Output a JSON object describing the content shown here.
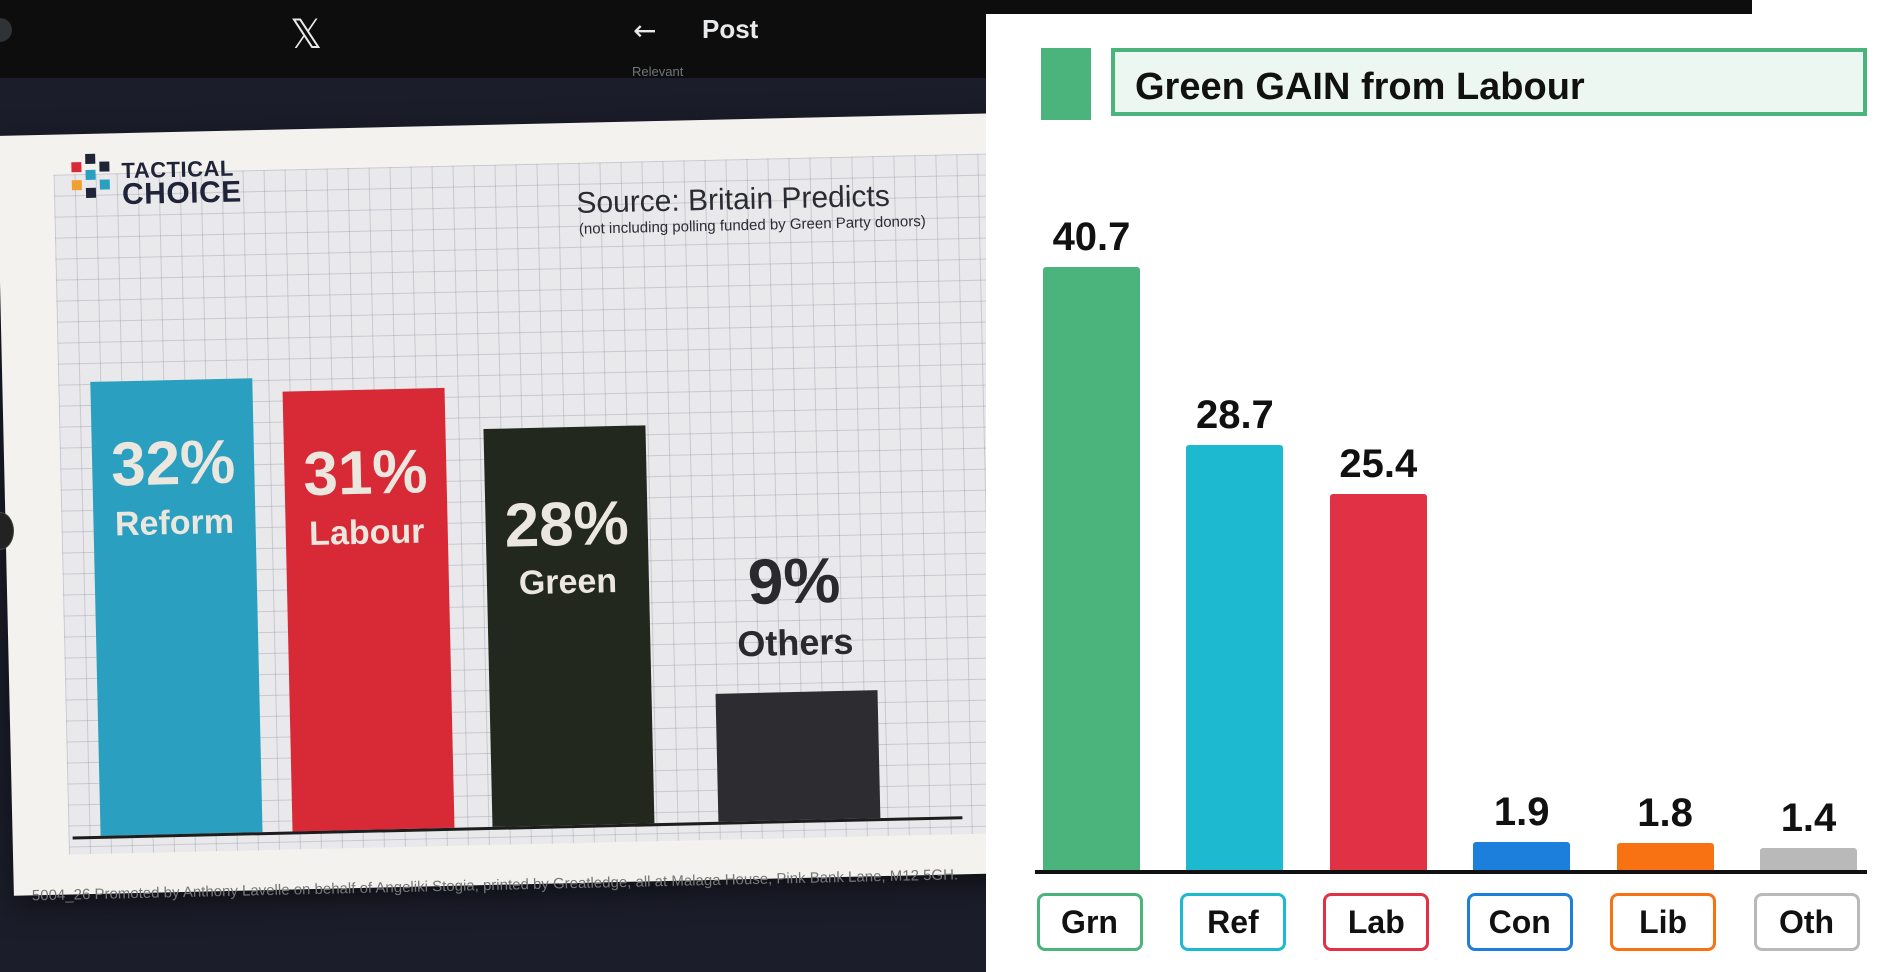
{
  "header": {
    "logo_glyph": "𝕏",
    "back_glyph": "←",
    "title": "Post",
    "subtitle": "Relevant"
  },
  "left_card": {
    "brand_line1": "TACTICAL",
    "brand_line2": "CHOICE",
    "source": "Source: Britain Predicts",
    "source_note": "(not including polling funded by Green Party donors)",
    "footnote": "5004_26 Promoted by Anthony Lavelle on behalf of Angeliki Stogia, printed by Greatledge, all at Malaga House, Pink Bank Lane, M12 5GH.",
    "bars": [
      {
        "pct_label": "32%",
        "name": "Reform",
        "value": 32,
        "color": "#2a9fbf"
      },
      {
        "pct_label": "31%",
        "name": "Labour",
        "value": 31,
        "color": "#d72a36"
      },
      {
        "pct_label": "28%",
        "name": "Green",
        "value": 28,
        "color": "#23281f"
      },
      {
        "pct_label": "9%",
        "name": "Others",
        "value": 9,
        "color": "#2d2d31"
      }
    ]
  },
  "right_chart": {
    "title": "Green GAIN from Labour",
    "accent_color": "#4bb37c"
  },
  "chart_data": [
    {
      "type": "bar",
      "title": "",
      "source": "Source: Britain Predicts",
      "categories": [
        "Reform",
        "Labour",
        "Green",
        "Others"
      ],
      "values": [
        32,
        31,
        28,
        9
      ],
      "colors": [
        "#2a9fbf",
        "#d72a36",
        "#23281f",
        "#2d2d31"
      ]
    },
    {
      "type": "bar",
      "title": "Green GAIN from Labour",
      "categories": [
        "Grn",
        "Ref",
        "Lab",
        "Con",
        "Lib",
        "Oth"
      ],
      "values": [
        40.7,
        28.7,
        25.4,
        1.9,
        1.8,
        1.4
      ],
      "value_labels": [
        "40.7",
        "28.7",
        "25.4",
        "1.9",
        "1.8",
        "1.4"
      ],
      "colors": [
        "#4bb37c",
        "#1cb9d0",
        "#e03145",
        "#1c7fdc",
        "#f87214",
        "#b9b9b9"
      ],
      "ylim": [
        0,
        40.7
      ]
    }
  ]
}
